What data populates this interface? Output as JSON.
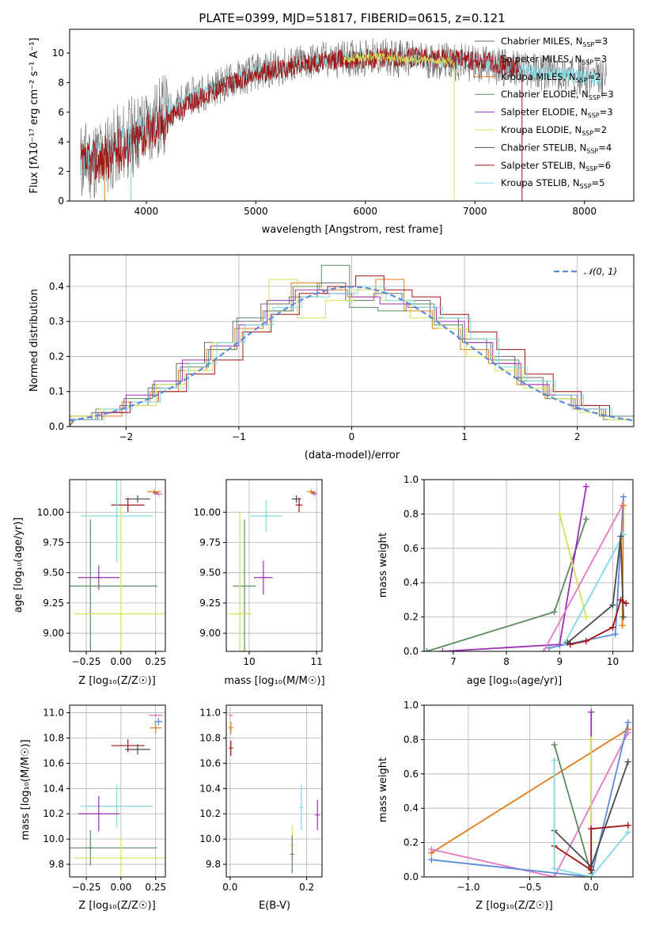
{
  "title": "PLATE=0399, MJD=51817, FIBERID=0615, z=0.121",
  "colors": {
    "chab_miles": "#6a6a6a",
    "salp_miles": "#e377c2",
    "krou_miles": "#e07b1a",
    "chab_elodie": "#5b8a5f",
    "salp_elodie": "#9b30b5",
    "krou_elodie": "#d4e157",
    "chab_stelib": "#4a4a4a",
    "salp_stelib": "#a01515",
    "krou_stelib": "#80d8e0",
    "blue": "#5b8bd9"
  },
  "panels": {
    "spectrum": {
      "xlabel": "wavelength [Angstrom, rest frame]",
      "ylabel": "Flux [fλ10⁻¹⁷ erg cm⁻² s⁻¹ A⁻¹]",
      "xticks": [
        "4000",
        "5000",
        "6000",
        "7000",
        "8000"
      ],
      "yticks": [
        "0",
        "2",
        "4",
        "6",
        "8",
        "10"
      ],
      "legend": [
        {
          "label": "Chabrier MILES, N",
          "sub": "SSP",
          "tail": "=3",
          "color": "#6a6a6a"
        },
        {
          "label": "Salpeter MILES, N",
          "sub": "SSP",
          "tail": "=3",
          "color": "#e377c2"
        },
        {
          "label": "Kroupa MILES, N",
          "sub": "SSP",
          "tail": "=2",
          "color": "#e07b1a"
        },
        {
          "label": "Chabrier ELODIE, N",
          "sub": "SSP",
          "tail": "=3",
          "color": "#5b8a5f"
        },
        {
          "label": "Salpeter ELODIE, N",
          "sub": "SSP",
          "tail": "=3",
          "color": "#9b30b5"
        },
        {
          "label": "Kroupa ELODIE, N",
          "sub": "SSP",
          "tail": "=2",
          "color": "#d4e157"
        },
        {
          "label": "Chabrier STELIB, N",
          "sub": "SSP",
          "tail": "=4",
          "color": "#4a4a4a"
        },
        {
          "label": "Salpeter STELIB, N",
          "sub": "SSP",
          "tail": "=6",
          "color": "#a01515"
        },
        {
          "label": "Kroupa STELIB, N",
          "sub": "SSP",
          "tail": "=5",
          "color": "#80d8e0"
        }
      ]
    },
    "residuals": {
      "xlabel": "(data-model)/error",
      "ylabel": "Normed distribution",
      "xticks": [
        "−2",
        "−1",
        "0",
        "1",
        "2"
      ],
      "yticks": [
        "0.0",
        "0.1",
        "0.2",
        "0.3",
        "0.4"
      ],
      "legend": "𝒩(0, 1)"
    },
    "age_z": {
      "xlabel": "Z [log₁₀(Z/Z☉)]",
      "ylabel": "age  [log₁₀(age/yr)]",
      "xticks": [
        "−0.25",
        "0.00",
        "0.25"
      ],
      "yticks": [
        "9.00",
        "9.25",
        "9.50",
        "9.75",
        "10.00"
      ]
    },
    "age_mass": {
      "xlabel": "mass [log₁₀(M/M☉)]",
      "xticks": [
        "10",
        "11"
      ],
      "yticks": [
        "9.00",
        "9.25",
        "9.50",
        "9.75",
        "10.00"
      ]
    },
    "mw_age": {
      "xlabel": "age  [log₁₀(age/yr)]",
      "ylabel": "mass weight",
      "xticks": [
        "7",
        "8",
        "9",
        "10"
      ],
      "yticks": [
        "0.0",
        "0.2",
        "0.4",
        "0.6",
        "0.8",
        "1.0"
      ]
    },
    "mass_z": {
      "xlabel": "Z [log₁₀(Z/Z☉)]",
      "ylabel": "mass [log₁₀(M/M☉)]",
      "xticks": [
        "−0.25",
        "0.00",
        "0.25"
      ],
      "yticks": [
        "9.8",
        "10.0",
        "10.2",
        "10.4",
        "10.6",
        "10.8",
        "11.0"
      ]
    },
    "mass_ebv": {
      "xlabel": "E(B-V)",
      "xticks": [
        "0.0",
        "0.2"
      ],
      "yticks": [
        "9.8",
        "10.0",
        "10.2",
        "10.4",
        "10.6",
        "10.8",
        "11.0"
      ]
    },
    "mw_z": {
      "xlabel": "Z [log₁₀(Z/Z☉)]",
      "ylabel": "mass weight",
      "xticks": [
        "−1.0",
        "−0.5",
        "0.0"
      ],
      "yticks": [
        "0.0",
        "0.2",
        "0.4",
        "0.6",
        "0.8",
        "1.0"
      ]
    }
  },
  "chart_data": [
    {
      "type": "line",
      "name": "spectrum",
      "xlim": [
        3300,
        8450
      ],
      "ylim": [
        0,
        11.6
      ],
      "series": [
        {
          "name": "Salpeter STELIB, N_SSP=6",
          "x": [
            3400,
            3600,
            3800,
            4000,
            4200,
            4400,
            4600,
            4800,
            5000,
            5200,
            5400,
            5600,
            5800,
            6000,
            6200,
            6400,
            6600,
            6800,
            7000,
            7200,
            7400
          ],
          "y": [
            2.4,
            2.8,
            3.6,
            4.6,
            5.6,
            6.6,
            7.4,
            8.0,
            8.5,
            8.9,
            9.2,
            9.4,
            9.6,
            9.6,
            9.7,
            9.7,
            9.6,
            9.6,
            9.4,
            9.3,
            9.0
          ]
        },
        {
          "name": "Chabrier MILES, N_SSP=3 (data)",
          "x": [
            3400,
            3600,
            3800,
            4000,
            4200,
            4400,
            4600,
            4800,
            5000,
            5200,
            5400,
            5600,
            5800,
            6000,
            6200,
            6400,
            6600,
            6800,
            7000,
            7200,
            7400,
            7600,
            7800,
            8000,
            8200
          ],
          "y": [
            2.6,
            3.0,
            4.0,
            5.0,
            6.0,
            7.0,
            7.6,
            8.2,
            8.7,
            9.0,
            9.3,
            9.5,
            9.6,
            9.7,
            9.7,
            9.6,
            9.5,
            9.4,
            9.3,
            9.1,
            8.9,
            8.7,
            8.6,
            8.4,
            8.2
          ]
        }
      ]
    },
    {
      "type": "bar",
      "name": "residual histogram",
      "xlim": [
        -2.5,
        2.5
      ],
      "ylim": [
        0,
        0.49
      ],
      "gaussian": {
        "mean": 0,
        "sigma": 1
      },
      "bin_edges": [
        -2.5,
        -2.25,
        -2.0,
        -1.75,
        -1.5,
        -1.25,
        -1.0,
        -0.75,
        -0.5,
        -0.25,
        0.0,
        0.25,
        0.5,
        0.75,
        1.0,
        1.25,
        1.5,
        1.75,
        2.0,
        2.25,
        2.5
      ],
      "series": [
        {
          "name": "Chabrier MILES",
          "values": [
            0.02,
            0.04,
            0.06,
            0.11,
            0.18,
            0.24,
            0.3,
            0.35,
            0.37,
            0.41,
            0.36,
            0.38,
            0.36,
            0.31,
            0.25,
            0.2,
            0.14,
            0.09,
            0.06,
            0.03
          ]
        },
        {
          "name": "Kroupa MILES",
          "values": [
            0.03,
            0.03,
            0.07,
            0.1,
            0.16,
            0.22,
            0.28,
            0.33,
            0.41,
            0.39,
            0.37,
            0.42,
            0.33,
            0.28,
            0.22,
            0.18,
            0.12,
            0.08,
            0.05,
            0.03
          ]
        },
        {
          "name": "Chabrier ELODIE",
          "values": [
            0.02,
            0.05,
            0.08,
            0.12,
            0.17,
            0.22,
            0.31,
            0.33,
            0.4,
            0.46,
            0.34,
            0.33,
            0.35,
            0.29,
            0.24,
            0.19,
            0.13,
            0.08,
            0.05,
            0.02
          ]
        },
        {
          "name": "Salpeter ELODIE",
          "values": [
            0.02,
            0.04,
            0.09,
            0.13,
            0.19,
            0.23,
            0.29,
            0.36,
            0.39,
            0.38,
            0.37,
            0.35,
            0.34,
            0.3,
            0.24,
            0.18,
            0.12,
            0.09,
            0.05,
            0.03
          ]
        },
        {
          "name": "Kroupa ELODIE",
          "values": [
            0.03,
            0.05,
            0.06,
            0.12,
            0.16,
            0.24,
            0.27,
            0.42,
            0.31,
            0.36,
            0.39,
            0.36,
            0.31,
            0.28,
            0.2,
            0.16,
            0.11,
            0.08,
            0.04,
            0.02
          ]
        },
        {
          "name": "Salpeter STELIB",
          "values": [
            0.02,
            0.04,
            0.07,
            0.1,
            0.15,
            0.19,
            0.27,
            0.32,
            0.38,
            0.4,
            0.43,
            0.39,
            0.37,
            0.32,
            0.27,
            0.22,
            0.15,
            0.1,
            0.06,
            0.03
          ]
        },
        {
          "name": "Kroupa STELIB",
          "values": [
            0.02,
            0.05,
            0.07,
            0.11,
            0.18,
            0.24,
            0.29,
            0.34,
            0.37,
            0.38,
            0.4,
            0.36,
            0.34,
            0.31,
            0.25,
            0.17,
            0.13,
            0.09,
            0.05,
            0.03
          ]
        }
      ]
    },
    {
      "type": "scatter",
      "name": "age vs Z (error bars)",
      "xlim": [
        -0.37,
        0.32
      ],
      "ylim": [
        8.85,
        10.27
      ],
      "points": [
        {
          "c": "chab_miles",
          "x": 0.25,
          "xerr": 0.02,
          "y": 10.16,
          "yerr": 0.01
        },
        {
          "c": "krou_miles",
          "x": 0.24,
          "xerr": 0.05,
          "y": 10.17,
          "yerr": 0.02
        },
        {
          "c": "salp_miles",
          "x": 0.27,
          "xerr": 0.03,
          "y": 10.15,
          "yerr": 0.02
        },
        {
          "c": "chab_stelib",
          "x": 0.12,
          "xerr": 0.09,
          "y": 10.11,
          "yerr": 0.03
        },
        {
          "c": "salp_stelib",
          "x": 0.05,
          "xerr": 0.12,
          "y": 10.06,
          "yerr": 0.06
        },
        {
          "c": "krou_stelib",
          "x": -0.03,
          "xerr": 0.26,
          "y": 9.97,
          "yerr": 0.38
        },
        {
          "c": "salp_elodie",
          "x": -0.16,
          "xerr": 0.15,
          "y": 9.46,
          "yerr": 0.1
        },
        {
          "c": "chab_elodie",
          "x": -0.22,
          "xerr": 0.48,
          "y": 9.39,
          "yerr": 0.55
        },
        {
          "c": "krou_elodie",
          "x": 0.0,
          "xerr": 0.34,
          "y": 9.16,
          "yerr": 0.88
        }
      ]
    },
    {
      "type": "scatter",
      "name": "age vs mass (error bars)",
      "xlim": [
        9.66,
        11.08
      ],
      "ylim": [
        8.85,
        10.27
      ],
      "points": [
        {
          "c": "chab_miles",
          "x": 10.95,
          "xerr": 0.04,
          "y": 10.16,
          "yerr": 0.01
        },
        {
          "c": "krou_miles",
          "x": 10.92,
          "xerr": 0.06,
          "y": 10.17,
          "yerr": 0.02
        },
        {
          "c": "salp_miles",
          "x": 10.97,
          "xerr": 0.04,
          "y": 10.15,
          "yerr": 0.02
        },
        {
          "c": "chab_stelib",
          "x": 10.7,
          "xerr": 0.07,
          "y": 10.11,
          "yerr": 0.03
        },
        {
          "c": "salp_stelib",
          "x": 10.74,
          "xerr": 0.05,
          "y": 10.06,
          "yerr": 0.06
        },
        {
          "c": "krou_stelib",
          "x": 10.25,
          "xerr": 0.23,
          "y": 9.97,
          "yerr": 0.13
        },
        {
          "c": "salp_elodie",
          "x": 10.21,
          "xerr": 0.14,
          "y": 9.46,
          "yerr": 0.14
        },
        {
          "c": "chab_elodie",
          "x": 9.93,
          "xerr": 0.17,
          "y": 9.39,
          "yerr": 0.55
        },
        {
          "c": "krou_elodie",
          "x": 9.86,
          "xerr": 0.17,
          "y": 9.16,
          "yerr": 0.85
        }
      ]
    },
    {
      "type": "line",
      "name": "mass weight vs age",
      "xlim": [
        6.45,
        10.38
      ],
      "ylim": [
        0,
        1
      ],
      "series": [
        {
          "c": "chab_elodie",
          "x": [
            6.5,
            8.9,
            9.5
          ],
          "y": [
            0.0,
            0.23,
            0.77
          ]
        },
        {
          "c": "salp_elodie",
          "x": [
            6.8,
            9.0,
            9.5
          ],
          "y": [
            0.0,
            0.04,
            0.96
          ]
        },
        {
          "c": "krou_elodie",
          "x": [
            9.0,
            9.5
          ],
          "y": [
            0.8,
            0.2
          ]
        },
        {
          "c": "blue",
          "x": [
            8.8,
            10.05,
            10.2
          ],
          "y": [
            0.02,
            0.1,
            0.9
          ]
        },
        {
          "c": "salp_miles",
          "x": [
            8.7,
            10.18
          ],
          "y": [
            0.0,
            0.85
          ]
        },
        {
          "c": "krou_miles",
          "x": [
            10.18,
            10.2
          ],
          "y": [
            0.15,
            0.85
          ]
        },
        {
          "c": "krou_stelib",
          "x": [
            9.1,
            10.2
          ],
          "y": [
            0.05,
            0.68
          ]
        },
        {
          "c": "chab_stelib",
          "x": [
            9.15,
            10.0,
            10.15,
            10.2
          ],
          "y": [
            0.05,
            0.27,
            0.67,
            0.2
          ]
        },
        {
          "c": "salp_stelib",
          "x": [
            9.2,
            9.5,
            10.0,
            10.15,
            10.25
          ],
          "y": [
            0.04,
            0.06,
            0.14,
            0.3,
            0.28
          ]
        }
      ]
    },
    {
      "type": "scatter",
      "name": "mass vs Z (error bars)",
      "xlim": [
        -0.37,
        0.32
      ],
      "ylim": [
        9.7,
        11.06
      ],
      "points": [
        {
          "c": "salp_miles",
          "x": 0.25,
          "xerr": 0.05,
          "y": 10.98,
          "yerr": 0.01
        },
        {
          "c": "blue",
          "x": 0.27,
          "xerr": 0.03,
          "y": 10.93,
          "yerr": 0.03
        },
        {
          "c": "krou_miles",
          "x": 0.25,
          "xerr": 0.04,
          "y": 10.88,
          "yerr": 0.04
        },
        {
          "c": "salp_stelib",
          "x": 0.05,
          "xerr": 0.12,
          "y": 10.74,
          "yerr": 0.05
        },
        {
          "c": "chab_stelib",
          "x": 0.12,
          "xerr": 0.09,
          "y": 10.71,
          "yerr": 0.04
        },
        {
          "c": "krou_stelib",
          "x": -0.03,
          "xerr": 0.26,
          "y": 10.26,
          "yerr": 0.17
        },
        {
          "c": "salp_elodie",
          "x": -0.16,
          "xerr": 0.15,
          "y": 10.2,
          "yerr": 0.14
        },
        {
          "c": "chab_elodie",
          "x": -0.22,
          "xerr": 0.48,
          "y": 9.93,
          "yerr": 0.14
        },
        {
          "c": "krou_elodie",
          "x": 0.0,
          "xerr": 0.34,
          "y": 9.85,
          "yerr": 0.17
        }
      ]
    },
    {
      "type": "scatter",
      "name": "mass vs E(B-V) (error bars)",
      "xlim": [
        -0.01,
        0.24
      ],
      "ylim": [
        9.7,
        11.06
      ],
      "points": [
        {
          "c": "salp_miles",
          "x": 0.001,
          "xerr": 0,
          "y": 10.98,
          "yerr": 0.01
        },
        {
          "c": "krou_miles",
          "x": 0.002,
          "xerr": 0,
          "y": 10.88,
          "yerr": 0.05
        },
        {
          "c": "salp_stelib",
          "x": 0.002,
          "xerr": 0,
          "y": 10.72,
          "yerr": 0.06
        },
        {
          "c": "krou_stelib",
          "x": 0.186,
          "xerr": 0,
          "y": 10.25,
          "yerr": 0.18
        },
        {
          "c": "salp_elodie",
          "x": 0.228,
          "xerr": 0,
          "y": 10.19,
          "yerr": 0.12
        },
        {
          "c": "krou_elodie",
          "x": 0.162,
          "xerr": 0,
          "y": 9.95,
          "yerr": 0.16
        },
        {
          "c": "chab_elodie",
          "x": 0.162,
          "xerr": 0,
          "y": 9.88,
          "yerr": 0.15
        }
      ]
    },
    {
      "type": "line",
      "name": "mass weight vs Z",
      "xlim": [
        -1.36,
        0.34
      ],
      "ylim": [
        0,
        1
      ],
      "series": [
        {
          "c": "krou_miles",
          "x": [
            -1.3,
            0.3
          ],
          "y": [
            0.14,
            0.86
          ]
        },
        {
          "c": "salp_miles",
          "x": [
            -1.3,
            -0.3,
            0.3
          ],
          "y": [
            0.16,
            0.0,
            0.84
          ]
        },
        {
          "c": "blue",
          "x": [
            -1.3,
            0.0,
            0.3
          ],
          "y": [
            0.1,
            0.0,
            0.9
          ]
        },
        {
          "c": "chab_elodie",
          "x": [
            -0.3,
            0.0
          ],
          "y": [
            0.77,
            0.02
          ]
        },
        {
          "c": "salp_elodie",
          "x": [
            0.0,
            0.0
          ],
          "y": [
            0.04,
            0.96
          ]
        },
        {
          "c": "krou_elodie",
          "x": [
            0.0,
            0.0
          ],
          "y": [
            0.2,
            0.8
          ]
        },
        {
          "c": "chab_stelib",
          "x": [
            -0.3,
            0.0,
            0.3
          ],
          "y": [
            0.27,
            0.06,
            0.67
          ]
        },
        {
          "c": "salp_stelib",
          "x": [
            -0.3,
            0.0,
            0.0,
            0.3
          ],
          "y": [
            0.18,
            0.04,
            0.28,
            0.3
          ]
        },
        {
          "c": "krou_stelib",
          "x": [
            -0.3,
            -0.3,
            0.0,
            0.3
          ],
          "y": [
            0.68,
            0.05,
            0.0,
            0.26
          ]
        }
      ]
    }
  ]
}
